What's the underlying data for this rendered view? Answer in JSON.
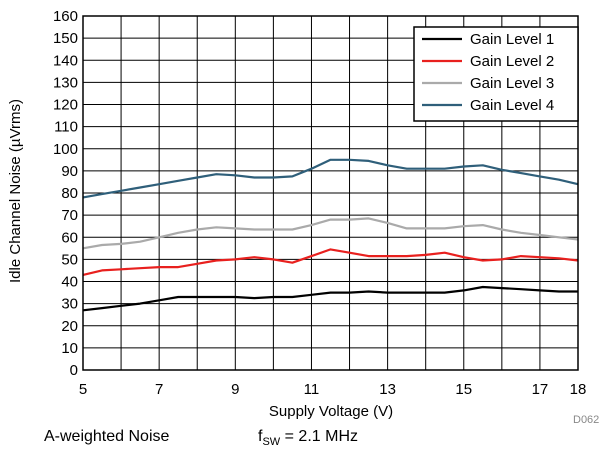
{
  "chart_data": {
    "type": "line",
    "xlabel": "Supply Voltage (V)",
    "ylabel": "Idle Channel Noise (µVrms)",
    "xlim": [
      5,
      18
    ],
    "ylim": [
      0,
      160
    ],
    "xticks": [
      5,
      7,
      9,
      11,
      13,
      15,
      17,
      18
    ],
    "xgrid": [
      5,
      6,
      7,
      8,
      9,
      10,
      11,
      12,
      13,
      14,
      15,
      16,
      17,
      18
    ],
    "yticks": [
      0,
      10,
      20,
      30,
      40,
      50,
      60,
      70,
      80,
      90,
      100,
      110,
      120,
      130,
      140,
      150,
      160
    ],
    "grid": true,
    "legend_position": "top-right",
    "series": [
      {
        "name": "Gain Level 1",
        "color": "#000000",
        "x": [
          5,
          5.5,
          6,
          6.5,
          7,
          7.5,
          8,
          8.5,
          9,
          9.5,
          10,
          10.5,
          11,
          11.5,
          12,
          12.5,
          13,
          13.5,
          14,
          14.5,
          15,
          15.5,
          16,
          16.5,
          17,
          17.5,
          18
        ],
        "y": [
          27,
          28,
          29,
          30,
          31.5,
          33,
          33,
          33,
          33,
          32.5,
          33,
          33,
          34,
          35,
          35,
          35.5,
          35,
          35,
          35,
          35,
          36,
          37.5,
          37,
          36.5,
          36,
          35.5,
          35.5
        ]
      },
      {
        "name": "Gain Level 2",
        "color": "#e8201e",
        "x": [
          5,
          5.5,
          6,
          6.5,
          7,
          7.5,
          8,
          8.5,
          9,
          9.5,
          10,
          10.5,
          11,
          11.5,
          12,
          12.5,
          13,
          13.5,
          14,
          14.5,
          15,
          15.5,
          16,
          16.5,
          17,
          17.5,
          18
        ],
        "y": [
          43,
          45,
          45.5,
          46,
          46.5,
          46.5,
          48,
          49.5,
          50,
          51,
          50,
          48.5,
          51.5,
          54.5,
          53,
          51.5,
          51.5,
          51.5,
          52,
          53,
          51,
          49.5,
          50,
          51.5,
          51,
          50.5,
          49.5
        ]
      },
      {
        "name": "Gain Level 3",
        "color": "#aaaaaa",
        "x": [
          5,
          5.5,
          6,
          6.5,
          7,
          7.5,
          8,
          8.5,
          9,
          9.5,
          10,
          10.5,
          11,
          11.5,
          12,
          12.5,
          13,
          13.5,
          14,
          14.5,
          15,
          15.5,
          16,
          16.5,
          17,
          17.5,
          18
        ],
        "y": [
          55,
          56.5,
          57,
          58,
          60,
          62,
          63.5,
          64.5,
          64,
          63.5,
          63.5,
          63.5,
          65.5,
          68,
          68,
          68.5,
          66.5,
          64,
          64,
          64,
          65,
          65.5,
          63.5,
          62,
          61,
          60,
          59
        ]
      },
      {
        "name": "Gain Level 4",
        "color": "#2f5f7a",
        "x": [
          5,
          5.5,
          6,
          6.5,
          7,
          7.5,
          8,
          8.5,
          9,
          9.5,
          10,
          10.5,
          11,
          11.5,
          12,
          12.5,
          13,
          13.5,
          14,
          14.5,
          15,
          15.5,
          16,
          16.5,
          17,
          17.5,
          18
        ],
        "y": [
          78,
          79.5,
          81,
          82.5,
          84,
          85.5,
          87,
          88.5,
          88,
          87,
          87,
          87.5,
          91,
          95,
          95,
          94.5,
          92.5,
          91,
          91,
          91,
          92,
          92.5,
          90.5,
          89,
          87.5,
          86,
          84
        ]
      }
    ]
  },
  "notes": {
    "weighting": "A-weighted Noise",
    "fsw_prefix": "f",
    "fsw_sub": "SW",
    "fsw_value": " = 2.1 MHz",
    "figure_id": "D062"
  }
}
